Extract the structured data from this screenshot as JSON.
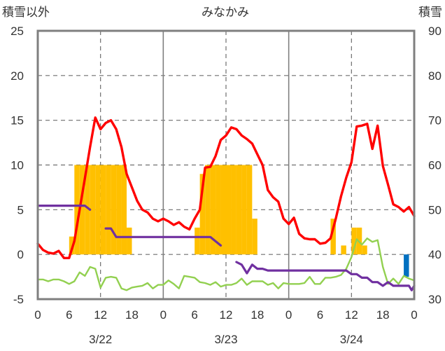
{
  "chart_data": {
    "type": "combo",
    "title": "みなかみ",
    "left_axis_label": "積雪以外",
    "right_axis_label": "積雪",
    "y_left": {
      "range": [
        -5,
        25
      ],
      "ticks": [
        -5,
        0,
        5,
        10,
        15,
        20,
        25
      ]
    },
    "y_right": {
      "range": [
        30,
        90
      ],
      "ticks": [
        30,
        40,
        50,
        60,
        70,
        80,
        90
      ]
    },
    "x_hour_range": [
      0,
      72
    ],
    "x_tick_hours": [
      0,
      6,
      12,
      18,
      24,
      30,
      36,
      42,
      48,
      54,
      60,
      66,
      72
    ],
    "x_tick_labels": [
      "0",
      "6",
      "12",
      "18",
      "0",
      "6",
      "12",
      "18",
      "0",
      "6",
      "12",
      "18",
      "0"
    ],
    "day_labels": [
      {
        "hour": 12,
        "label": "3/22"
      },
      {
        "hour": 36,
        "label": "3/23"
      },
      {
        "hour": 60,
        "label": "3/24"
      }
    ],
    "grid": {
      "day_lines_solid": [
        24,
        48
      ],
      "noon_lines_dashed": [
        12,
        36,
        60
      ],
      "horizontal_dashed": [
        0,
        5,
        10,
        15,
        20
      ]
    },
    "series": [
      {
        "key": "precip",
        "kind": "bar",
        "axis": "left",
        "color": "#FFC000",
        "values": [
          [
            6.5,
            2
          ],
          [
            7.5,
            10
          ],
          [
            8.5,
            10
          ],
          [
            9.5,
            10
          ],
          [
            10.5,
            10
          ],
          [
            11.5,
            10
          ],
          [
            12.5,
            10
          ],
          [
            13.5,
            10
          ],
          [
            14.5,
            10
          ],
          [
            15.5,
            10
          ],
          [
            16.5,
            10
          ],
          [
            17.5,
            3
          ],
          [
            30.5,
            3
          ],
          [
            31.5,
            9
          ],
          [
            32.5,
            10
          ],
          [
            33.5,
            10
          ],
          [
            34.5,
            10
          ],
          [
            35.5,
            10
          ],
          [
            36.5,
            10
          ],
          [
            37.5,
            10
          ],
          [
            38.5,
            10
          ],
          [
            39.5,
            10
          ],
          [
            40.5,
            10
          ],
          [
            41.5,
            4
          ],
          [
            56.5,
            4
          ],
          [
            58.5,
            1
          ],
          [
            60.5,
            3
          ],
          [
            61.5,
            3
          ],
          [
            62.5,
            1
          ]
        ]
      },
      {
        "key": "sunshine",
        "kind": "bar",
        "axis": "left",
        "color": "#0070C0",
        "values": [
          [
            70.5,
            -2.5
          ]
        ]
      },
      {
        "key": "temperature",
        "kind": "line",
        "axis": "left",
        "color": "#FF0000",
        "points": [
          [
            0,
            1.2
          ],
          [
            1,
            0.5
          ],
          [
            2,
            0.2
          ],
          [
            3,
            0.1
          ],
          [
            4,
            0.4
          ],
          [
            5,
            -0.4
          ],
          [
            6,
            -0.4
          ],
          [
            7,
            1.5
          ],
          [
            8,
            5
          ],
          [
            9,
            8.5
          ],
          [
            10,
            12
          ],
          [
            11,
            15.3
          ],
          [
            12,
            14
          ],
          [
            13,
            14.7
          ],
          [
            14,
            15
          ],
          [
            15,
            14
          ],
          [
            16,
            12
          ],
          [
            17,
            9
          ],
          [
            18,
            7.5
          ],
          [
            19,
            6
          ],
          [
            20,
            5
          ],
          [
            21,
            4.7
          ],
          [
            22,
            4
          ],
          [
            23,
            3.7
          ],
          [
            24,
            4
          ],
          [
            25,
            3.7
          ],
          [
            26,
            3.3
          ],
          [
            27,
            3.6
          ],
          [
            28,
            3.1
          ],
          [
            29,
            2.8
          ],
          [
            30,
            4
          ],
          [
            31,
            5
          ],
          [
            32,
            9.7
          ],
          [
            33,
            9.8
          ],
          [
            34,
            11
          ],
          [
            35,
            12.8
          ],
          [
            36,
            13.3
          ],
          [
            37,
            14.2
          ],
          [
            38,
            14
          ],
          [
            39,
            13.3
          ],
          [
            40,
            12.9
          ],
          [
            41,
            12.4
          ],
          [
            42,
            11.2
          ],
          [
            43,
            10
          ],
          [
            44,
            7.2
          ],
          [
            45,
            6.4
          ],
          [
            46,
            5.9
          ],
          [
            47,
            4
          ],
          [
            48,
            3.4
          ],
          [
            49,
            4.1
          ],
          [
            50,
            2.3
          ],
          [
            51,
            1.8
          ],
          [
            52,
            1.7
          ],
          [
            53,
            1.7
          ],
          [
            54,
            1.2
          ],
          [
            55,
            1.3
          ],
          [
            56,
            1.8
          ],
          [
            57,
            4
          ],
          [
            58,
            6.5
          ],
          [
            59,
            8.6
          ],
          [
            60,
            10.3
          ],
          [
            61,
            14.3
          ],
          [
            62,
            14.4
          ],
          [
            63,
            14.6
          ],
          [
            64,
            11.8
          ],
          [
            65,
            14.4
          ],
          [
            66,
            9.9
          ],
          [
            67,
            7.8
          ],
          [
            68,
            5.6
          ],
          [
            69,
            5.3
          ],
          [
            70,
            4.8
          ],
          [
            71,
            5.3
          ],
          [
            72,
            4.3
          ]
        ]
      },
      {
        "key": "wind",
        "kind": "line",
        "axis": "left",
        "color": "#92D050",
        "points": [
          [
            0,
            -2.8
          ],
          [
            1,
            -2.8
          ],
          [
            2,
            -3
          ],
          [
            3,
            -2.8
          ],
          [
            4,
            -2.8
          ],
          [
            5,
            -3
          ],
          [
            6,
            -3.3
          ],
          [
            7,
            -3
          ],
          [
            8,
            -2
          ],
          [
            9,
            -2.4
          ],
          [
            10,
            -1.4
          ],
          [
            11,
            -1.6
          ],
          [
            12,
            -3.7
          ],
          [
            13,
            -2.6
          ],
          [
            14,
            -2.5
          ],
          [
            15,
            -2.6
          ],
          [
            16,
            -3.8
          ],
          [
            17,
            -4
          ],
          [
            18,
            -3.7
          ],
          [
            19,
            -3.6
          ],
          [
            20,
            -3.5
          ],
          [
            21,
            -3.2
          ],
          [
            22,
            -3.8
          ],
          [
            23,
            -3.4
          ],
          [
            24,
            -3.4
          ],
          [
            25,
            -2.9
          ],
          [
            26,
            -3.3
          ],
          [
            27,
            -3.8
          ],
          [
            28,
            -2.4
          ],
          [
            29,
            -2.5
          ],
          [
            30,
            -2.6
          ],
          [
            31,
            -3.1
          ],
          [
            32,
            -3.2
          ],
          [
            33,
            -3.4
          ],
          [
            34,
            -3.1
          ],
          [
            35,
            -3.6
          ],
          [
            36,
            -3.4
          ],
          [
            37,
            -3.4
          ],
          [
            38,
            -3.2
          ],
          [
            39,
            -2.7
          ],
          [
            40,
            -3.4
          ],
          [
            41,
            -3
          ],
          [
            42,
            -3
          ],
          [
            43,
            -3
          ],
          [
            44,
            -3.4
          ],
          [
            45,
            -3.2
          ],
          [
            46,
            -3.8
          ],
          [
            47,
            -3.2
          ],
          [
            48,
            -3.3
          ],
          [
            49,
            -3.3
          ],
          [
            50,
            -3.3
          ],
          [
            51,
            -3.2
          ],
          [
            52,
            -2.5
          ],
          [
            53,
            -3.3
          ],
          [
            54,
            -3.3
          ],
          [
            55,
            -2.6
          ],
          [
            56,
            -2.6
          ],
          [
            57,
            -2.5
          ],
          [
            58,
            -2.3
          ],
          [
            59,
            -1.6
          ],
          [
            60,
            -0.3
          ],
          [
            61,
            1.7
          ],
          [
            62,
            1.1
          ],
          [
            63,
            1.8
          ],
          [
            64,
            1.4
          ],
          [
            65,
            1.6
          ],
          [
            66,
            -1.4
          ],
          [
            67,
            -3.3
          ],
          [
            68,
            -2.7
          ],
          [
            69,
            -3.3
          ],
          [
            70,
            -2.4
          ],
          [
            71,
            -2.7
          ],
          [
            72,
            -2.9
          ]
        ]
      },
      {
        "key": "snow_depth",
        "kind": "line",
        "axis": "right",
        "color": "#7030A0",
        "segments": [
          [
            [
              0,
              50.9
            ],
            [
              9,
              50.9
            ],
            [
              10,
              50
            ]
          ],
          [
            [
              13,
              45.8
            ],
            [
              14,
              45.8
            ],
            [
              15,
              43.9
            ],
            [
              16,
              43.9
            ],
            [
              33,
              43.9
            ],
            [
              35,
              42
            ]
          ],
          [
            [
              38,
              38.3
            ],
            [
              39,
              37.7
            ],
            [
              40,
              35.8
            ],
            [
              41,
              37.7
            ],
            [
              42,
              36.8
            ],
            [
              43,
              36.8
            ],
            [
              44,
              36.4
            ],
            [
              58,
              36.4
            ],
            [
              59,
              36.4
            ],
            [
              60,
              35.6
            ],
            [
              61,
              35.6
            ],
            [
              62,
              34.8
            ],
            [
              63,
              34.8
            ],
            [
              64,
              33.8
            ],
            [
              65,
              33.8
            ],
            [
              66,
              33
            ],
            [
              67,
              33.8
            ],
            [
              68,
              33
            ],
            [
              71,
              33
            ],
            [
              71.5,
              32
            ],
            [
              72,
              33
            ]
          ]
        ]
      }
    ]
  }
}
